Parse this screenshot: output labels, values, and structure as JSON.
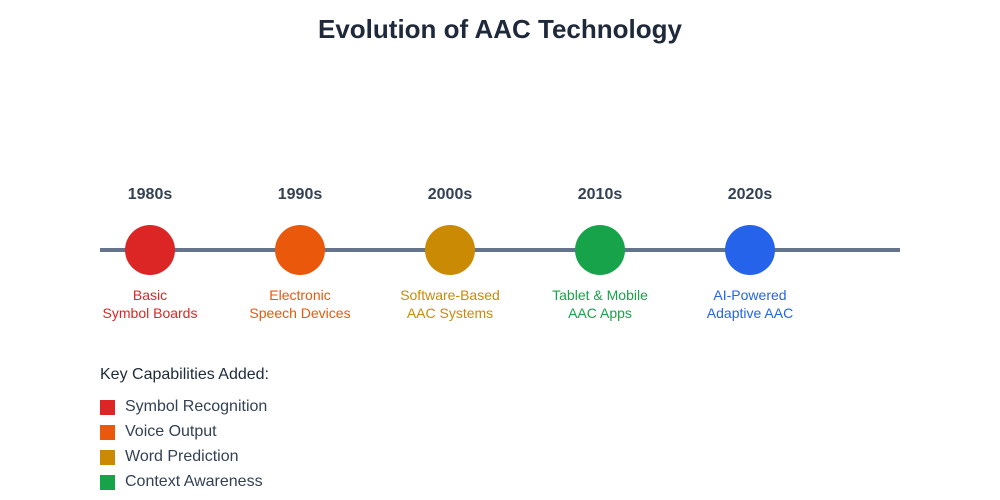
{
  "title": "Evolution of AAC Technology",
  "line_color": "#64748b",
  "timeline": [
    {
      "year": "1980s",
      "line1": "Basic",
      "line2": "Symbol Boards",
      "color": "#dc2626"
    },
    {
      "year": "1990s",
      "line1": "Electronic",
      "line2": "Speech Devices",
      "color": "#ea580c"
    },
    {
      "year": "2000s",
      "line1": "Software-Based",
      "line2": "AAC Systems",
      "color": "#ca8a04"
    },
    {
      "year": "2010s",
      "line1": "Tablet & Mobile",
      "line2": "AAC Apps",
      "color": "#16a34a"
    },
    {
      "year": "2020s",
      "line1": "AI-Powered",
      "line2": "Adaptive AAC",
      "color": "#2563eb"
    }
  ],
  "legend": {
    "title": "Key Capabilities Added:",
    "items": [
      {
        "label": "Symbol Recognition",
        "color": "#dc2626"
      },
      {
        "label": "Voice Output",
        "color": "#ea580c"
      },
      {
        "label": "Word Prediction",
        "color": "#ca8a04"
      },
      {
        "label": "Context Awareness",
        "color": "#16a34a"
      }
    ]
  }
}
